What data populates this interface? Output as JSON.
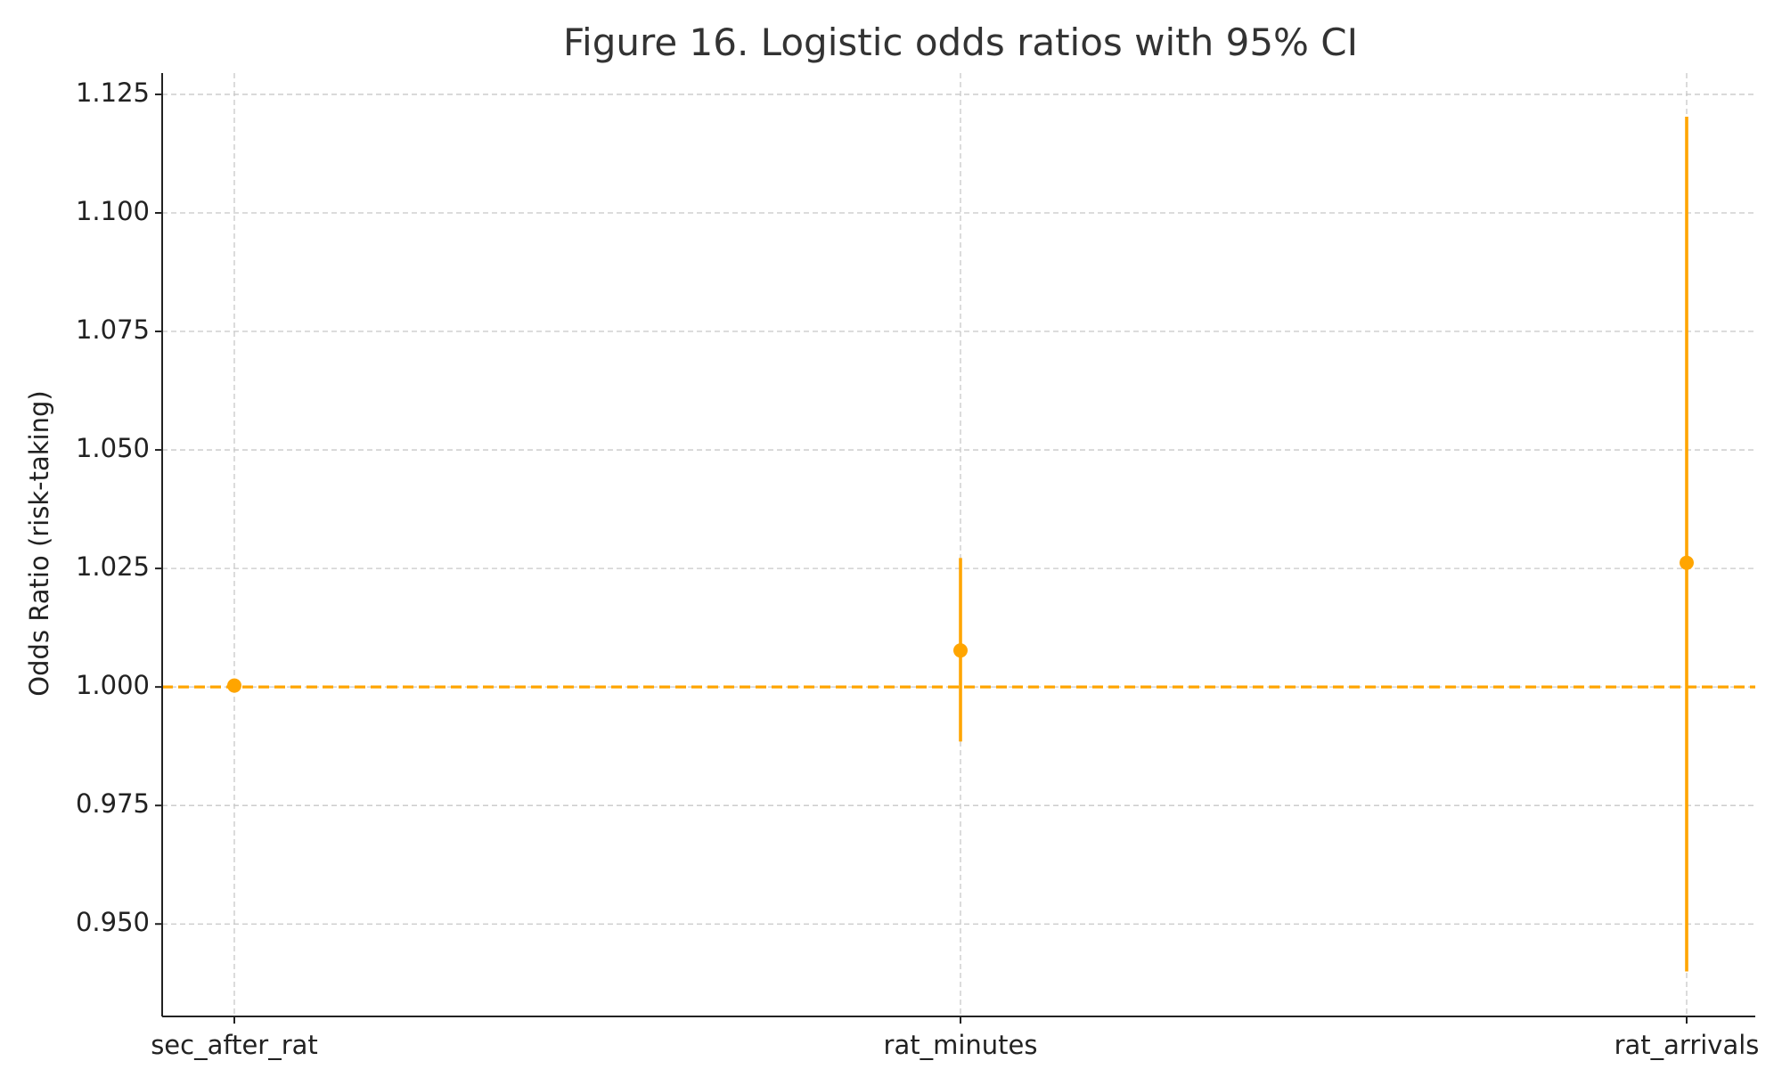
{
  "chart_data": {
    "type": "scatter",
    "title": "Figure 16. Logistic odds ratios with 95% CI",
    "xlabel": "",
    "ylabel": "Odds Ratio (risk-taking)",
    "categories": [
      "sec_after_rat",
      "rat_minutes",
      "rat_arrivals"
    ],
    "points": [
      {
        "category": "sec_after_rat",
        "or": 1.0003,
        "ci_low": 1.0,
        "ci_high": 1.0006
      },
      {
        "category": "rat_minutes",
        "or": 1.0077,
        "ci_low": 0.9885,
        "ci_high": 1.0272
      },
      {
        "category": "rat_arrivals",
        "or": 1.0262,
        "ci_low": 0.94,
        "ci_high": 1.1203
      }
    ],
    "reference_line": {
      "y": 1.0,
      "style": "dashed"
    },
    "ylim": [
      0.9305,
      1.1295
    ],
    "yticks": [
      0.95,
      0.975,
      1.0,
      1.025,
      1.05,
      1.075,
      1.1,
      1.125
    ],
    "ytick_labels": [
      "0.950",
      "0.975",
      "1.000",
      "1.025",
      "1.050",
      "1.075",
      "1.100",
      "1.125"
    ],
    "grid": true,
    "legend": "none",
    "colors": {
      "marker": "#FFA500",
      "errorbar": "#FFA500",
      "reference": "#FFA500",
      "grid": "#C8C8C8",
      "axis": "#222222"
    }
  }
}
